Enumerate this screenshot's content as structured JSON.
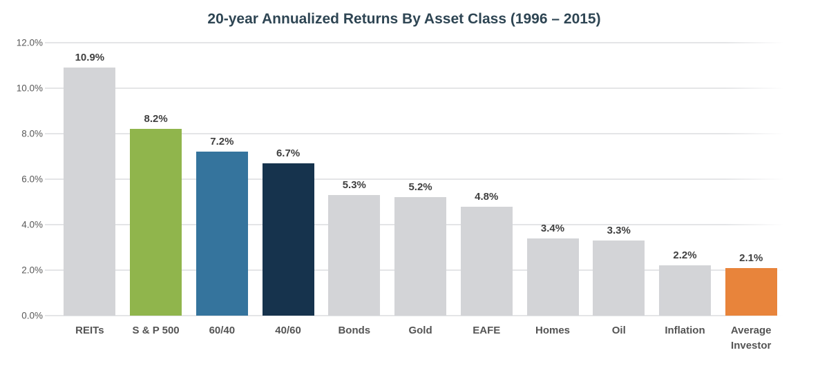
{
  "chart_data": {
    "type": "bar",
    "title": "20-year Annualized Returns By Asset Class (1996 – 2015)",
    "categories": [
      "REITs",
      "S & P 500",
      "60/40",
      "40/60",
      "Bonds",
      "Gold",
      "EAFE",
      "Homes",
      "Oil",
      "Inflation",
      "Average Investor"
    ],
    "values": [
      10.9,
      8.2,
      7.2,
      6.7,
      5.3,
      5.2,
      4.8,
      3.4,
      3.3,
      2.2,
      2.1
    ],
    "value_labels": [
      "10.9%",
      "8.2%",
      "7.2%",
      "6.7%",
      "5.3%",
      "5.2%",
      "4.8%",
      "3.4%",
      "3.3%",
      "2.2%",
      "2.1%"
    ],
    "bar_colors": [
      "#d3d4d7",
      "#90b54c",
      "#35749d",
      "#16334d",
      "#d3d4d7",
      "#d3d4d7",
      "#d3d4d7",
      "#d3d4d7",
      "#d3d4d7",
      "#d3d4d7",
      "#e8843b"
    ],
    "xlabel": "",
    "ylabel": "",
    "ylim": [
      0,
      12
    ],
    "ytick_labels": [
      "0.0%",
      "2.0%",
      "4.0%",
      "6.0%",
      "8.0%",
      "10.0%",
      "12.0%"
    ],
    "grid": "horizontal-only",
    "legend": "none"
  },
  "colors": {
    "title": "#2e4553",
    "value_label": "#3f3f3f",
    "axis_label": "#595959",
    "x_label": "#545454",
    "gridline": "#e4e5e7",
    "background": "#ffffff",
    "bar_default": "#d3d4d7",
    "bar_sp500": "#90b54c",
    "bar_60_40": "#35749d",
    "bar_40_60": "#16334d",
    "bar_average_investor": "#e8843b"
  }
}
